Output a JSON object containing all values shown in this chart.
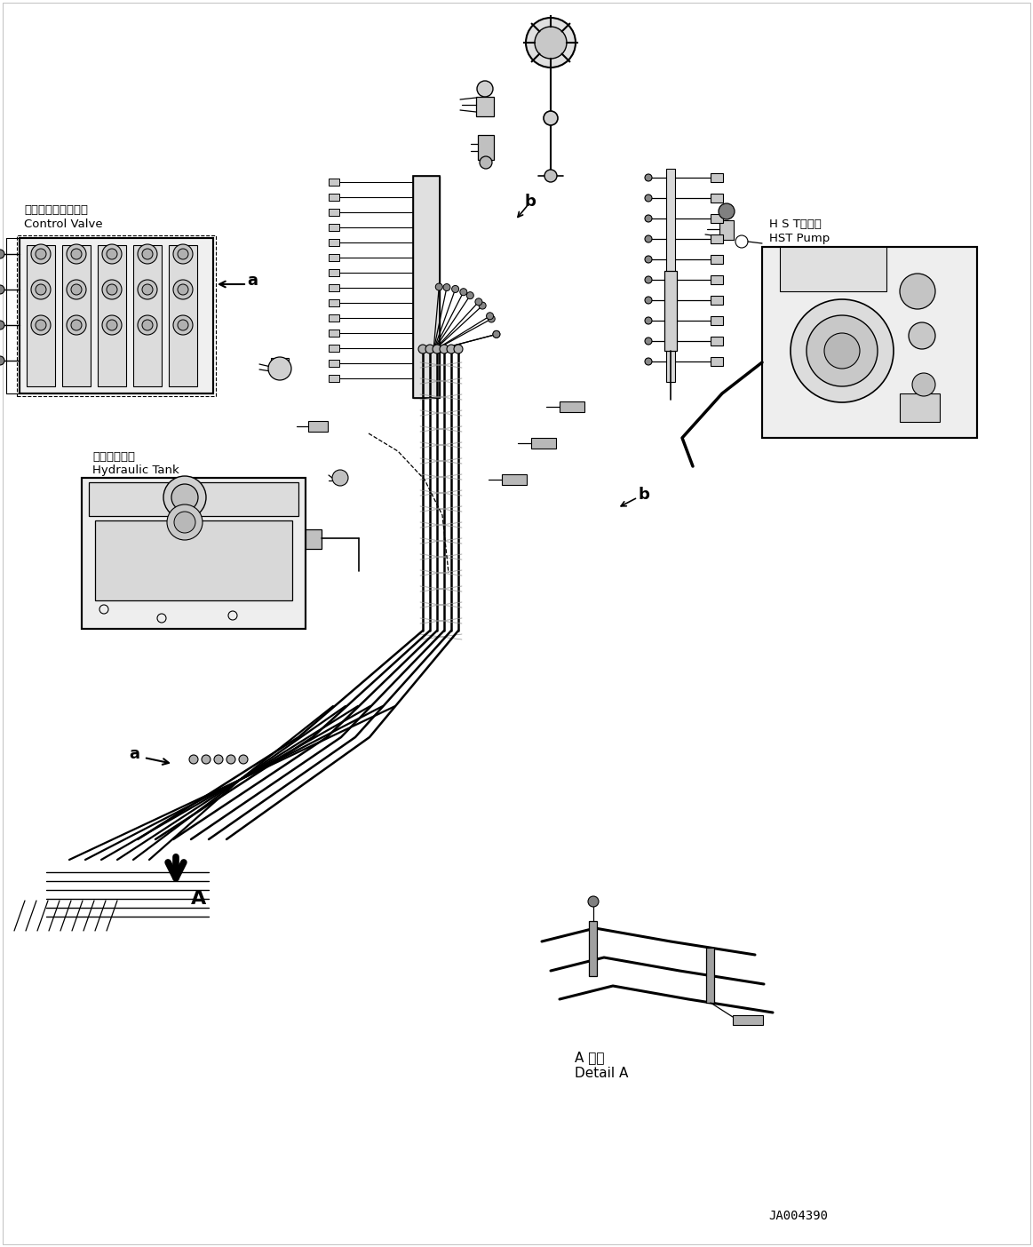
{
  "bg_color": "#ffffff",
  "line_color": "#000000",
  "fig_width": 11.63,
  "fig_height": 14.04,
  "part_code": "JA004390",
  "cv_label_jp": "コントロールバルブ",
  "cv_label_en": "Control Valve",
  "ht_label_jp": "作動油タンク",
  "ht_label_en": "Hydraulic Tank",
  "hst_label_jp": "H S Tポンプ",
  "hst_label_en": "HST Pump",
  "detail_a_jp": "A 詳細",
  "detail_a_en": "Detail A",
  "label_a": "a",
  "label_b": "b",
  "label_A": "A"
}
